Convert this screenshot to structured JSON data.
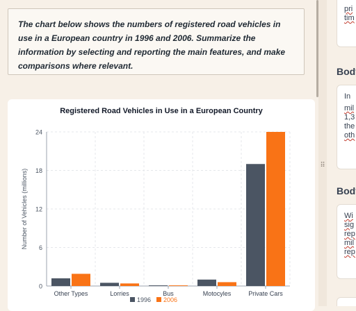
{
  "task": {
    "prompt": "The chart below shows the numbers of registered road vehicles in use in a European country in 1996 and 2006. Summarize the information by selecting and reporting the main features, and make comparisons where relevant."
  },
  "chart_data": {
    "type": "bar",
    "title": "Registered Road Vehicles in Use in a European Country",
    "xlabel": "",
    "ylabel": "Number of Vehicles (millions)",
    "categories": [
      "Other Types",
      "Lorries",
      "Bus",
      "Motocyles",
      "Private Cars"
    ],
    "series": [
      {
        "name": "1996",
        "values": [
          1.2,
          0.5,
          0.1,
          1.0,
          19.0
        ],
        "color": "#4b5563"
      },
      {
        "name": "2006",
        "values": [
          1.9,
          0.4,
          0.1,
          0.6,
          24.0
        ],
        "color": "#f97316"
      }
    ],
    "ylim": [
      0,
      24
    ],
    "yticks": [
      "0",
      "6",
      "12",
      "18",
      "24"
    ],
    "grid": true,
    "legend": "bottom"
  },
  "right_panel": {
    "card1_lines": [
      "pri",
      "tim"
    ],
    "body_heading_1": "Body",
    "card2_lines": [
      "In",
      "mil",
      "1,3",
      "the",
      "oth"
    ],
    "body_heading_2": "Body",
    "card3_lines": [
      "Wi",
      "sig",
      "rep",
      "mil",
      "rep"
    ]
  },
  "divider": {
    "handle_glyph": "⠿"
  }
}
